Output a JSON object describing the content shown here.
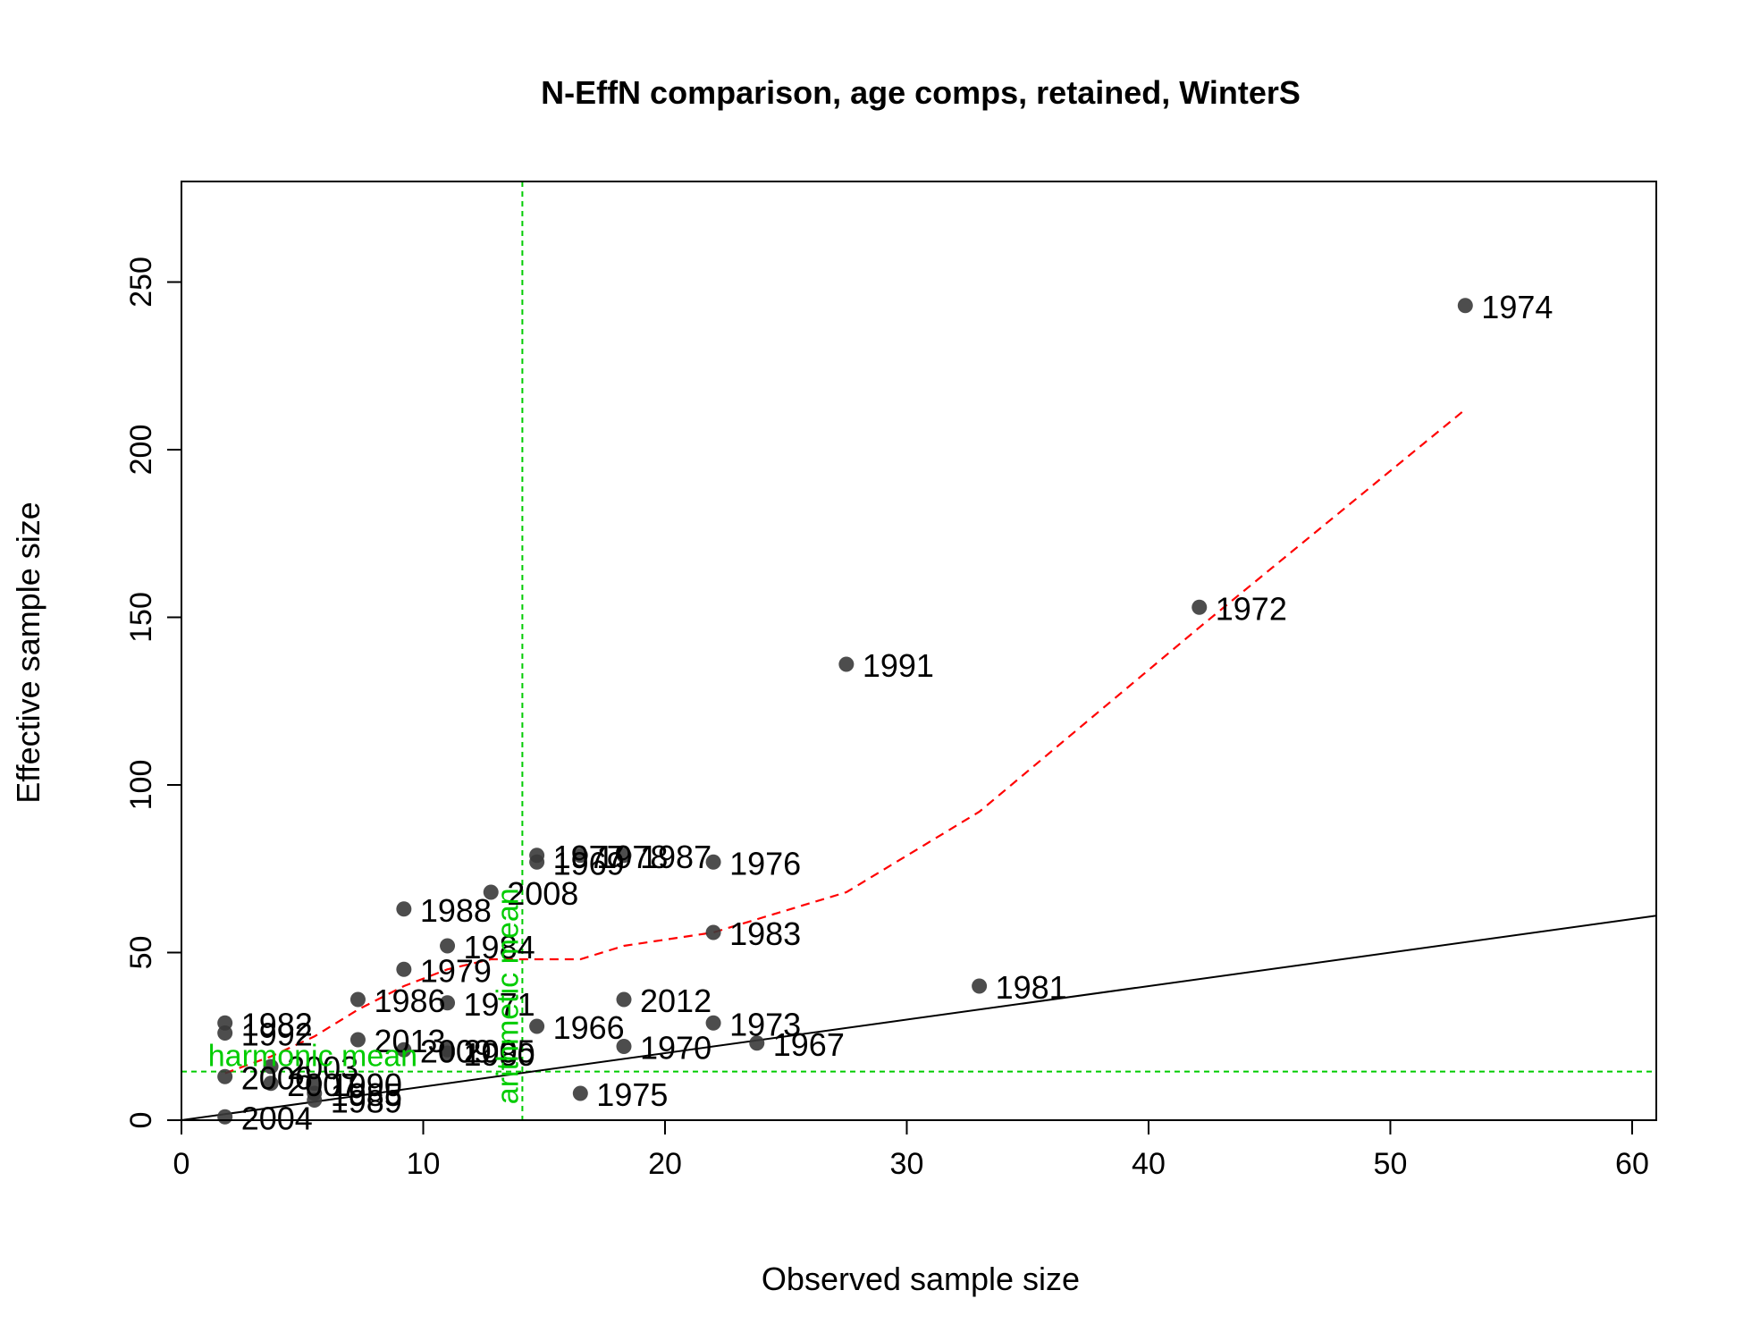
{
  "chart_data": {
    "type": "scatter",
    "title": "N-EffN comparison, age comps, retained, WinterS",
    "xlabel": "Observed sample size",
    "ylabel": "Effective sample size",
    "xlim": [
      0,
      61
    ],
    "ylim": [
      0,
      280
    ],
    "x_ticks": [
      0,
      10,
      20,
      30,
      40,
      50,
      60
    ],
    "y_ticks": [
      0,
      50,
      100,
      150,
      200,
      250
    ],
    "grid": false,
    "legend": "none",
    "colors": {
      "points": "#3a3a3a",
      "identity_line": "#000000",
      "smoother": "#ff0000",
      "reference_lines": "#00cc00"
    },
    "points": [
      {
        "label": "1974",
        "x": 53.1,
        "y": 243
      },
      {
        "label": "1972",
        "x": 42.1,
        "y": 153
      },
      {
        "label": "1991",
        "x": 27.5,
        "y": 136
      },
      {
        "label": "1981",
        "x": 33.0,
        "y": 40
      },
      {
        "label": "1976",
        "x": 22.0,
        "y": 77
      },
      {
        "label": "1983",
        "x": 22.0,
        "y": 56
      },
      {
        "label": "1973",
        "x": 22.0,
        "y": 29
      },
      {
        "label": "1967",
        "x": 23.8,
        "y": 23
      },
      {
        "label": "2012",
        "x": 18.3,
        "y": 36
      },
      {
        "label": "1970",
        "x": 18.3,
        "y": 22
      },
      {
        "label": "1987",
        "x": 18.3,
        "y": 79
      },
      {
        "label": "1978",
        "x": 16.5,
        "y": 79
      },
      {
        "label": "1975",
        "x": 16.5,
        "y": 8
      },
      {
        "label": "1977",
        "x": 14.7,
        "y": 79
      },
      {
        "label": "1969",
        "x": 14.7,
        "y": 77
      },
      {
        "label": "1966",
        "x": 14.7,
        "y": 28
      },
      {
        "label": "2008",
        "x": 12.8,
        "y": 68
      },
      {
        "label": "1984",
        "x": 11.0,
        "y": 52
      },
      {
        "label": "1971",
        "x": 11.0,
        "y": 35
      },
      {
        "label": "1980",
        "x": 11.0,
        "y": 20
      },
      {
        "label": "2005",
        "x": 11.0,
        "y": 21
      },
      {
        "label": "1988",
        "x": 9.2,
        "y": 63
      },
      {
        "label": "1979",
        "x": 9.2,
        "y": 45
      },
      {
        "label": "2009",
        "x": 9.2,
        "y": 21
      },
      {
        "label": "1986",
        "x": 7.3,
        "y": 36
      },
      {
        "label": "2013",
        "x": 7.3,
        "y": 24
      },
      {
        "label": "1990",
        "x": 5.5,
        "y": 11
      },
      {
        "label": "1985",
        "x": 5.5,
        "y": 8
      },
      {
        "label": "1989",
        "x": 5.5,
        "y": 6
      },
      {
        "label": "2003",
        "x": 3.7,
        "y": 16
      },
      {
        "label": "2007",
        "x": 3.7,
        "y": 11
      },
      {
        "label": "1982",
        "x": 1.8,
        "y": 29
      },
      {
        "label": "1992",
        "x": 1.8,
        "y": 26
      },
      {
        "label": "2006",
        "x": 1.8,
        "y": 13
      },
      {
        "label": "2004",
        "x": 1.8,
        "y": 1
      }
    ],
    "smoother": {
      "x": [
        1.8,
        3.7,
        5.5,
        7.3,
        9.2,
        11.0,
        12.8,
        14.7,
        16.5,
        18.3,
        22.0,
        27.5,
        33.0,
        42.1,
        53.1
      ],
      "y": [
        14,
        19,
        25,
        33,
        40,
        45,
        48,
        48,
        48,
        52,
        56,
        68,
        92,
        147,
        212
      ]
    },
    "identity_line": {
      "slope": 1,
      "intercept": 0
    },
    "reference_lines": [
      {
        "orientation": "vertical",
        "value": 14.1,
        "label": "arithmetic mean"
      },
      {
        "orientation": "horizontal",
        "value": 14.5,
        "label": "harmonic mean"
      }
    ]
  }
}
